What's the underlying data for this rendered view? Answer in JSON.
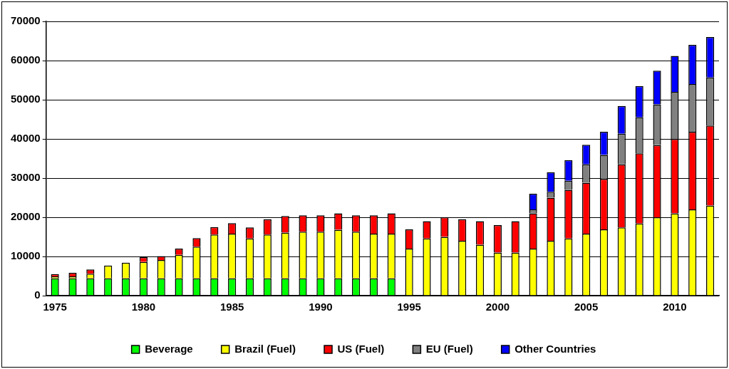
{
  "chart_data": {
    "type": "bar",
    "stacked": true,
    "grid": "y",
    "legend": "bottom",
    "categories": [
      "1975",
      null,
      null,
      null,
      null,
      "1980",
      null,
      null,
      null,
      null,
      "1985",
      null,
      null,
      null,
      null,
      "1990",
      null,
      null,
      null,
      null,
      "1995",
      null,
      null,
      null,
      null,
      "2000",
      null,
      null,
      null,
      null,
      "2005",
      null,
      null,
      null,
      null,
      "2010",
      null,
      null
    ],
    "ylim": [
      0,
      70000
    ],
    "yticks": [
      0,
      10000,
      20000,
      30000,
      40000,
      50000,
      60000,
      70000
    ],
    "series": [
      {
        "name": "Beverage",
        "color": "#00ff00",
        "values": [
          4400,
          4400,
          4400,
          4400,
          4400,
          4400,
          4400,
          4400,
          4400,
          4400,
          4400,
          4400,
          4400,
          4400,
          4400,
          4400,
          4400,
          4400,
          4400,
          4400,
          null,
          null,
          null,
          null,
          null,
          null,
          null,
          null,
          null,
          null,
          null,
          null,
          null,
          null,
          null,
          null,
          null,
          null
        ]
      },
      {
        "name": "Brazil (Fuel)",
        "color": "#ffff00",
        "values": [
          500,
          500,
          1200,
          3300,
          4000,
          4200,
          4700,
          6000,
          8100,
          11200,
          11400,
          10200,
          11200,
          11700,
          11900,
          11900,
          12400,
          11900,
          11400,
          11400,
          12000,
          14600,
          15000,
          14000,
          13000,
          11000,
          11000,
          12000,
          14000,
          14600,
          15800,
          16900,
          17400,
          18400,
          20000,
          21000,
          22000,
          23000
        ]
      },
      {
        "name": "US (Fuel)",
        "color": "#ff0000",
        "values": [
          600,
          900,
          1100,
          null,
          null,
          1200,
          1000,
          1600,
          2200,
          1900,
          2700,
          2800,
          3900,
          4200,
          4200,
          4200,
          4200,
          4200,
          4700,
          5200,
          4900,
          4400,
          5000,
          5500,
          6000,
          7000,
          8000,
          9000,
          11000,
          12400,
          13000,
          12900,
          16100,
          17900,
          18400,
          19000,
          19800,
          20400
        ]
      },
      {
        "name": "EU (Fuel)",
        "color": "#808080",
        "values": [
          null,
          null,
          null,
          null,
          null,
          null,
          null,
          null,
          null,
          null,
          null,
          null,
          null,
          null,
          null,
          null,
          null,
          null,
          null,
          null,
          null,
          null,
          null,
          null,
          null,
          null,
          null,
          1000,
          1500,
          2300,
          4700,
          6100,
          7800,
          9200,
          10400,
          12000,
          12200,
          12300
        ]
      },
      {
        "name": "Other Countries",
        "color": "#0000ff",
        "values": [
          null,
          null,
          null,
          null,
          null,
          null,
          null,
          null,
          null,
          null,
          null,
          null,
          null,
          null,
          null,
          null,
          null,
          null,
          null,
          null,
          null,
          null,
          null,
          null,
          null,
          null,
          null,
          4000,
          5000,
          5300,
          5000,
          5900,
          7100,
          8000,
          8600,
          9200,
          10000,
          10300
        ]
      }
    ]
  }
}
